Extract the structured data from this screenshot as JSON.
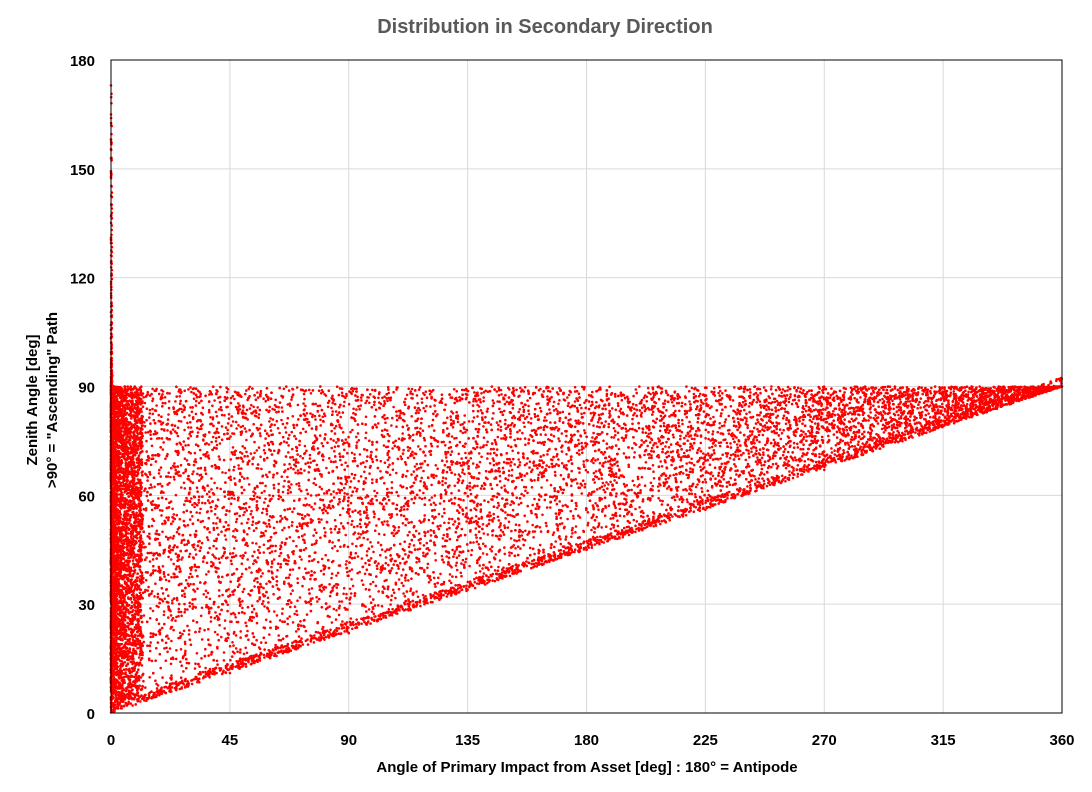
{
  "chart_data": {
    "type": "scatter",
    "title": "Distribution in Secondary Direction",
    "xlabel": "Angle of Primary Impact from Asset [deg] : 180° = Antipode",
    "ylabel_lines": [
      "Zenith Angle [deg]",
      ">90° = \"Ascending\" Path"
    ],
    "xlim": [
      0,
      360
    ],
    "ylim": [
      0,
      180
    ],
    "x_ticks": [
      "0",
      "45",
      "90",
      "135",
      "180",
      "225",
      "270",
      "315",
      "360"
    ],
    "y_ticks": [
      "0",
      "30",
      "60",
      "90",
      "120",
      "150",
      "180"
    ],
    "grid": true,
    "legend": "none",
    "marker_color": "#ff0000",
    "series": [
      {
        "point_count": 15000,
        "envelope": {
          "upper_zenith": 90,
          "lower_zenith_at_x0": 0,
          "lower_zenith_at_x360": 90,
          "spike_at_x": 0,
          "spike_max_zenith": 173
        },
        "sample_points": [
          [
            0,
            173
          ],
          [
            0,
            165
          ],
          [
            0,
            158
          ],
          [
            0.5,
            93
          ],
          [
            1,
            90
          ],
          [
            5,
            2
          ],
          [
            10,
            5
          ],
          [
            20,
            6
          ],
          [
            45,
            11
          ],
          [
            90,
            22
          ],
          [
            135,
            34
          ],
          [
            180,
            45
          ],
          [
            225,
            56
          ],
          [
            270,
            67
          ],
          [
            315,
            79
          ],
          [
            345,
            87
          ],
          [
            360,
            90
          ],
          [
            100,
            89
          ],
          [
            200,
            90
          ],
          [
            250,
            90
          ],
          [
            60,
            60
          ],
          [
            150,
            70
          ],
          [
            300,
            85
          ],
          [
            30,
            40
          ],
          [
            120,
            50
          ]
        ]
      }
    ]
  }
}
